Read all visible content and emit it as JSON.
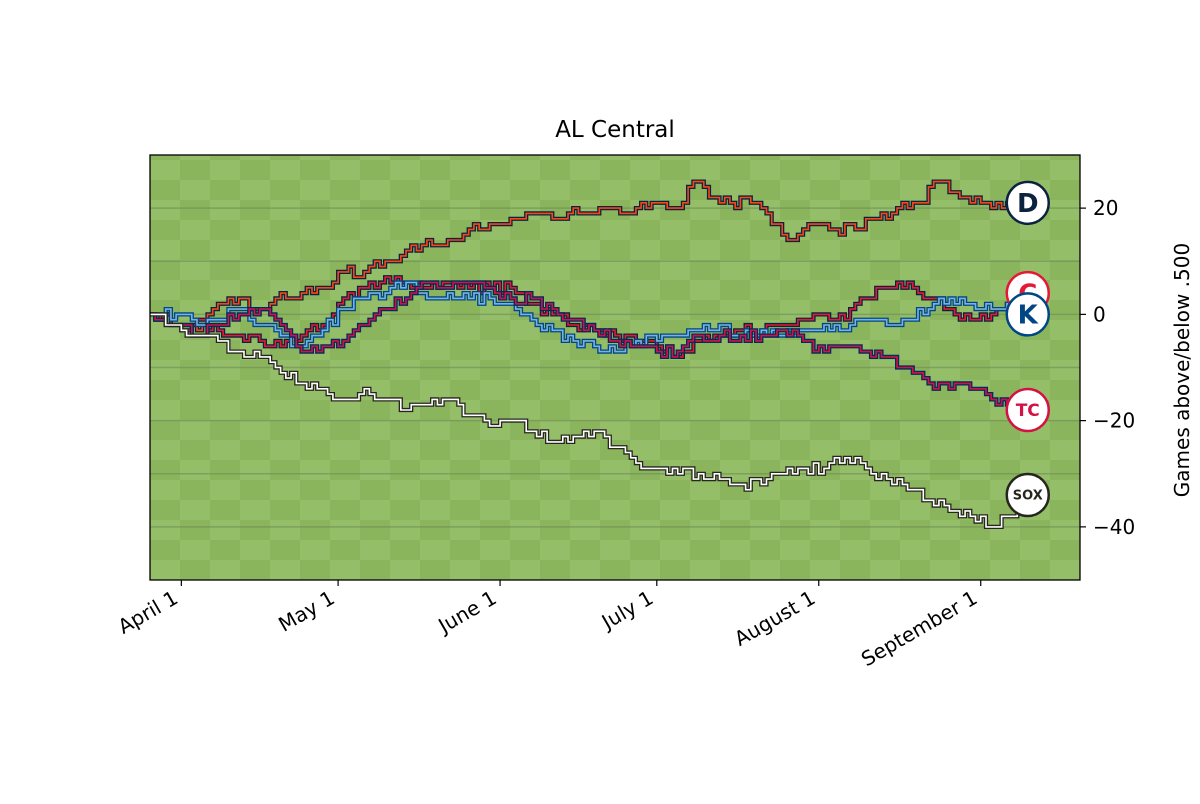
{
  "chart_data": {
    "type": "line",
    "title": "AL Central",
    "xlabel": "",
    "ylabel": "Games above/below .500",
    "grid": true,
    "legend": "none",
    "x_unit": "date",
    "xlim": [
      "2024-03-26",
      "2024-09-20"
    ],
    "ylim": [
      -50,
      30
    ],
    "x_ticks": [
      {
        "date": "2024-04-01",
        "label": "April  1"
      },
      {
        "date": "2024-05-01",
        "label": "May  1"
      },
      {
        "date": "2024-06-01",
        "label": "June  1"
      },
      {
        "date": "2024-07-01",
        "label": "July  1"
      },
      {
        "date": "2024-08-01",
        "label": "August  1"
      },
      {
        "date": "2024-09-01",
        "label": "September  1"
      }
    ],
    "y_ticks": [
      {
        "value": 20,
        "label": "20"
      },
      {
        "value": 0,
        "label": "0"
      },
      {
        "value": -20,
        "label": "−20"
      },
      {
        "value": -40,
        "label": "−40"
      }
    ],
    "colors": {
      "background_light": "#98bf6c",
      "background_dark": "#8ab55c",
      "gridline": "#6f8a56"
    },
    "series": [
      {
        "team": "Detroit Tigers",
        "icon": "tigers-logo-icon",
        "logo_letter": "D",
        "colors": {
          "outer": "#0C2340",
          "inner": "#FA4616",
          "logo_ring": "#0C2340",
          "logo_text": "#0C2340"
        },
        "points": [
          [
            "2024-03-26",
            0
          ],
          [
            "2024-03-31",
            -2
          ],
          [
            "2024-04-04",
            -3
          ],
          [
            "2024-04-08",
            2
          ],
          [
            "2024-04-12",
            3
          ],
          [
            "2024-04-16",
            1
          ],
          [
            "2024-04-20",
            4
          ],
          [
            "2024-04-24",
            4
          ],
          [
            "2024-04-28",
            5
          ],
          [
            "2024-05-02",
            8
          ],
          [
            "2024-05-06",
            8
          ],
          [
            "2024-05-10",
            10
          ],
          [
            "2024-05-14",
            12
          ],
          [
            "2024-05-18",
            14
          ],
          [
            "2024-05-22",
            14
          ],
          [
            "2024-05-26",
            16
          ],
          [
            "2024-05-30",
            17
          ],
          [
            "2024-06-03",
            18
          ],
          [
            "2024-06-07",
            19
          ],
          [
            "2024-06-11",
            18
          ],
          [
            "2024-06-15",
            20
          ],
          [
            "2024-06-19",
            19
          ],
          [
            "2024-06-23",
            20
          ],
          [
            "2024-06-27",
            20
          ],
          [
            "2024-07-01",
            21
          ],
          [
            "2024-07-05",
            20
          ],
          [
            "2024-07-08",
            25
          ],
          [
            "2024-07-11",
            22
          ],
          [
            "2024-07-15",
            21
          ],
          [
            "2024-07-19",
            21
          ],
          [
            "2024-07-23",
            17
          ],
          [
            "2024-07-27",
            14
          ],
          [
            "2024-07-31",
            17
          ],
          [
            "2024-08-04",
            16
          ],
          [
            "2024-08-08",
            16
          ],
          [
            "2024-08-12",
            18
          ],
          [
            "2024-08-16",
            20
          ],
          [
            "2024-08-20",
            21
          ],
          [
            "2024-08-24",
            25
          ],
          [
            "2024-08-28",
            22
          ],
          [
            "2024-09-01",
            21
          ],
          [
            "2024-09-05",
            20
          ],
          [
            "2024-09-10",
            21
          ]
        ]
      },
      {
        "team": "Cleveland Guardians",
        "icon": "guardians-logo-icon",
        "logo_letter": "C",
        "colors": {
          "outer": "#0C2340",
          "inner": "#E31937",
          "logo_ring": "#E31937",
          "logo_text": "#E31937"
        },
        "points": [
          [
            "2024-03-26",
            0
          ],
          [
            "2024-03-31",
            -2
          ],
          [
            "2024-04-04",
            -1
          ],
          [
            "2024-04-08",
            -3
          ],
          [
            "2024-04-12",
            -4
          ],
          [
            "2024-04-16",
            -5
          ],
          [
            "2024-04-20",
            -6
          ],
          [
            "2024-04-24",
            -4
          ],
          [
            "2024-04-28",
            -2
          ],
          [
            "2024-05-02",
            3
          ],
          [
            "2024-05-06",
            5
          ],
          [
            "2024-05-10",
            7
          ],
          [
            "2024-05-14",
            6
          ],
          [
            "2024-05-18",
            5
          ],
          [
            "2024-05-22",
            6
          ],
          [
            "2024-05-26",
            5
          ],
          [
            "2024-05-30",
            5
          ],
          [
            "2024-06-03",
            5
          ],
          [
            "2024-06-07",
            2
          ],
          [
            "2024-06-11",
            0
          ],
          [
            "2024-06-15",
            -2
          ],
          [
            "2024-06-19",
            -3
          ],
          [
            "2024-06-23",
            -4
          ],
          [
            "2024-06-27",
            -5
          ],
          [
            "2024-07-01",
            -6
          ],
          [
            "2024-07-05",
            -8
          ],
          [
            "2024-07-09",
            -5
          ],
          [
            "2024-07-13",
            -4
          ],
          [
            "2024-07-17",
            -3
          ],
          [
            "2024-07-21",
            -3
          ],
          [
            "2024-07-25",
            -2
          ],
          [
            "2024-07-29",
            -1
          ],
          [
            "2024-08-02",
            0
          ],
          [
            "2024-08-06",
            -1
          ],
          [
            "2024-08-10",
            3
          ],
          [
            "2024-08-14",
            5
          ],
          [
            "2024-08-18",
            6
          ],
          [
            "2024-08-22",
            3
          ],
          [
            "2024-08-26",
            1
          ],
          [
            "2024-08-30",
            -1
          ],
          [
            "2024-09-03",
            0
          ],
          [
            "2024-09-07",
            3
          ],
          [
            "2024-09-10",
            4
          ]
        ]
      },
      {
        "team": "Kansas City Royals",
        "icon": "royals-logo-icon",
        "logo_letter": "K",
        "colors": {
          "outer": "#004687",
          "inner": "#7BB2DD",
          "logo_ring": "#004687",
          "logo_text": "#004687"
        },
        "points": [
          [
            "2024-03-26",
            0
          ],
          [
            "2024-03-31",
            0
          ],
          [
            "2024-04-04",
            -2
          ],
          [
            "2024-04-08",
            -1
          ],
          [
            "2024-04-12",
            1
          ],
          [
            "2024-04-16",
            -2
          ],
          [
            "2024-04-20",
            -4
          ],
          [
            "2024-04-24",
            -6
          ],
          [
            "2024-04-28",
            -3
          ],
          [
            "2024-05-02",
            1
          ],
          [
            "2024-05-06",
            3
          ],
          [
            "2024-05-10",
            4
          ],
          [
            "2024-05-14",
            6
          ],
          [
            "2024-05-18",
            3
          ],
          [
            "2024-05-22",
            4
          ],
          [
            "2024-05-26",
            3
          ],
          [
            "2024-05-30",
            3
          ],
          [
            "2024-06-03",
            2
          ],
          [
            "2024-06-07",
            -1
          ],
          [
            "2024-06-11",
            -3
          ],
          [
            "2024-06-15",
            -5
          ],
          [
            "2024-06-19",
            -6
          ],
          [
            "2024-06-23",
            -7
          ],
          [
            "2024-06-27",
            -5
          ],
          [
            "2024-07-01",
            -5
          ],
          [
            "2024-07-05",
            -4
          ],
          [
            "2024-07-09",
            -3
          ],
          [
            "2024-07-13",
            -2
          ],
          [
            "2024-07-17",
            -4
          ],
          [
            "2024-07-21",
            -3
          ],
          [
            "2024-07-25",
            -4
          ],
          [
            "2024-07-29",
            -3
          ],
          [
            "2024-08-02",
            -2
          ],
          [
            "2024-08-06",
            -3
          ],
          [
            "2024-08-10",
            -1
          ],
          [
            "2024-08-14",
            -2
          ],
          [
            "2024-08-18",
            -1
          ],
          [
            "2024-08-22",
            1
          ],
          [
            "2024-08-26",
            3
          ],
          [
            "2024-08-30",
            2
          ],
          [
            "2024-09-03",
            1
          ],
          [
            "2024-09-07",
            2
          ],
          [
            "2024-09-10",
            0
          ]
        ]
      },
      {
        "team": "Minnesota Twins",
        "icon": "twins-logo-icon",
        "logo_letter": "TC",
        "colors": {
          "outer": "#002B5C",
          "inner": "#D31145",
          "logo_ring": "#D31145",
          "logo_text": "#D31145"
        },
        "points": [
          [
            "2024-03-26",
            0
          ],
          [
            "2024-03-31",
            -2
          ],
          [
            "2024-04-04",
            -4
          ],
          [
            "2024-04-08",
            -2
          ],
          [
            "2024-04-12",
            0
          ],
          [
            "2024-04-16",
            1
          ],
          [
            "2024-04-20",
            -2
          ],
          [
            "2024-04-24",
            -7
          ],
          [
            "2024-04-28",
            -6
          ],
          [
            "2024-05-02",
            -5
          ],
          [
            "2024-05-06",
            -2
          ],
          [
            "2024-05-10",
            1
          ],
          [
            "2024-05-14",
            3
          ],
          [
            "2024-05-18",
            6
          ],
          [
            "2024-05-22",
            5
          ],
          [
            "2024-05-26",
            6
          ],
          [
            "2024-05-30",
            5
          ],
          [
            "2024-06-03",
            3
          ],
          [
            "2024-06-07",
            3
          ],
          [
            "2024-06-11",
            1
          ],
          [
            "2024-06-15",
            -1
          ],
          [
            "2024-06-19",
            -3
          ],
          [
            "2024-06-23",
            -5
          ],
          [
            "2024-06-27",
            -6
          ],
          [
            "2024-07-01",
            -7
          ],
          [
            "2024-07-05",
            -7
          ],
          [
            "2024-07-09",
            -4
          ],
          [
            "2024-07-13",
            -4
          ],
          [
            "2024-07-17",
            -4
          ],
          [
            "2024-07-21",
            -4
          ],
          [
            "2024-07-25",
            -3
          ],
          [
            "2024-07-29",
            -5
          ],
          [
            "2024-08-02",
            -7
          ],
          [
            "2024-08-06",
            -6
          ],
          [
            "2024-08-10",
            -7
          ],
          [
            "2024-08-14",
            -8
          ],
          [
            "2024-08-18",
            -10
          ],
          [
            "2024-08-22",
            -13
          ],
          [
            "2024-08-26",
            -14
          ],
          [
            "2024-08-30",
            -14
          ],
          [
            "2024-09-03",
            -16
          ],
          [
            "2024-09-07",
            -18
          ],
          [
            "2024-09-10",
            -18
          ]
        ]
      },
      {
        "team": "Chicago White Sox",
        "icon": "white-sox-logo-icon",
        "logo_letter": "SOX",
        "colors": {
          "outer": "#27251F",
          "inner": "#FFFFFF",
          "logo_ring": "#27251F",
          "logo_text": "#27251F"
        },
        "points": [
          [
            "2024-03-26",
            0
          ],
          [
            "2024-03-31",
            -2
          ],
          [
            "2024-04-04",
            -4
          ],
          [
            "2024-04-08",
            -5
          ],
          [
            "2024-04-12",
            -7
          ],
          [
            "2024-04-16",
            -8
          ],
          [
            "2024-04-20",
            -11
          ],
          [
            "2024-04-24",
            -13
          ],
          [
            "2024-04-28",
            -14
          ],
          [
            "2024-05-02",
            -16
          ],
          [
            "2024-05-06",
            -14
          ],
          [
            "2024-05-10",
            -16
          ],
          [
            "2024-05-14",
            -18
          ],
          [
            "2024-05-18",
            -17
          ],
          [
            "2024-05-22",
            -16
          ],
          [
            "2024-05-26",
            -19
          ],
          [
            "2024-05-30",
            -21
          ],
          [
            "2024-06-03",
            -20
          ],
          [
            "2024-06-07",
            -22
          ],
          [
            "2024-06-11",
            -24
          ],
          [
            "2024-06-15",
            -23
          ],
          [
            "2024-06-19",
            -22
          ],
          [
            "2024-06-23",
            -25
          ],
          [
            "2024-06-27",
            -28
          ],
          [
            "2024-07-01",
            -29
          ],
          [
            "2024-07-05",
            -30
          ],
          [
            "2024-07-09",
            -30
          ],
          [
            "2024-07-13",
            -31
          ],
          [
            "2024-07-17",
            -32
          ],
          [
            "2024-07-21",
            -32
          ],
          [
            "2024-07-25",
            -30
          ],
          [
            "2024-07-29",
            -29
          ],
          [
            "2024-08-02",
            -29
          ],
          [
            "2024-08-06",
            -27
          ],
          [
            "2024-08-10",
            -29
          ],
          [
            "2024-08-14",
            -31
          ],
          [
            "2024-08-18",
            -33
          ],
          [
            "2024-08-22",
            -35
          ],
          [
            "2024-08-26",
            -37
          ],
          [
            "2024-08-30",
            -38
          ],
          [
            "2024-09-03",
            -40
          ],
          [
            "2024-09-07",
            -38
          ],
          [
            "2024-09-10",
            -34
          ]
        ]
      }
    ]
  }
}
